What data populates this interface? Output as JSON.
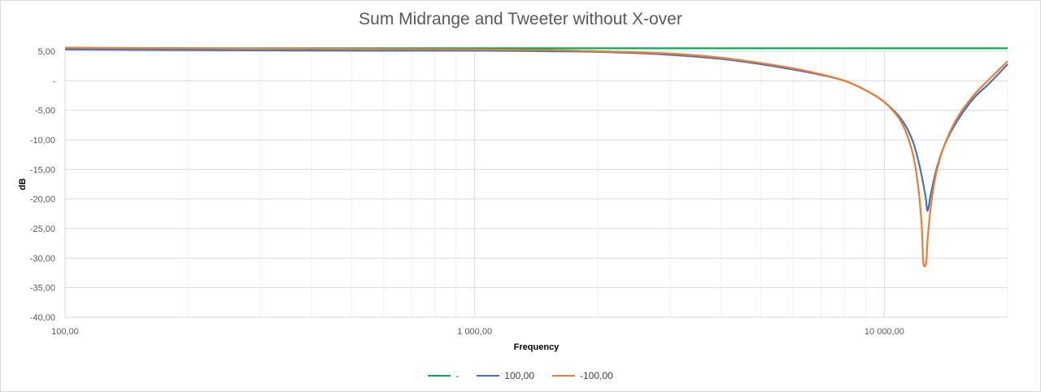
{
  "chart_data": {
    "type": "line",
    "title": "Sum Midrange and Tweeter without X-over",
    "xlabel": "Frequency",
    "ylabel": "dB",
    "x_scale": "log",
    "xlim": [
      100,
      20000
    ],
    "ylim": [
      -40,
      5
    ],
    "x_tick_labels": [
      "100,00",
      "1 000,00",
      "10 000,00"
    ],
    "x_ticks": [
      100,
      1000,
      10000
    ],
    "y_ticks": [
      5,
      0,
      -5,
      -10,
      -15,
      -20,
      -25,
      -30,
      -35,
      -40
    ],
    "y_tick_labels": [
      "5,00",
      "-",
      "-5,00",
      "-10,00",
      "-15,00",
      "-20,00",
      "-25,00",
      "-30,00",
      "-35,00",
      "-40,00"
    ],
    "grid": true,
    "legend_position": "bottom",
    "series": [
      {
        "name": "-",
        "color": "#00b050",
        "points": [
          [
            100,
            5.5
          ],
          [
            1000,
            5.5
          ],
          [
            10000,
            5.5
          ],
          [
            20000,
            5.5
          ]
        ]
      },
      {
        "name": "100,00",
        "color": "#4472c4",
        "points": [
          [
            100,
            5.3
          ],
          [
            200,
            5.2
          ],
          [
            500,
            5.1
          ],
          [
            1000,
            5.1
          ],
          [
            1500,
            5.0
          ],
          [
            2000,
            4.9
          ],
          [
            3000,
            4.4
          ],
          [
            4000,
            3.7
          ],
          [
            5000,
            2.8
          ],
          [
            6000,
            1.9
          ],
          [
            7000,
            1.0
          ],
          [
            8000,
            0.0
          ],
          [
            9000,
            -1.6
          ],
          [
            10000,
            -3.6
          ],
          [
            11000,
            -6.5
          ],
          [
            11700,
            -10.0
          ],
          [
            12200,
            -14.5
          ],
          [
            12600,
            -19.5
          ],
          [
            12750,
            -22.0
          ],
          [
            13000,
            -19.0
          ],
          [
            13400,
            -15.0
          ],
          [
            14000,
            -11.0
          ],
          [
            15000,
            -7.0
          ],
          [
            16500,
            -3.0
          ],
          [
            18000,
            -0.5
          ],
          [
            20000,
            2.8
          ]
        ]
      },
      {
        "name": "-100,00",
        "color": "#ed7d31",
        "points": [
          [
            100,
            5.6
          ],
          [
            200,
            5.5
          ],
          [
            500,
            5.4
          ],
          [
            1000,
            5.3
          ],
          [
            1500,
            5.2
          ],
          [
            2000,
            5.0
          ],
          [
            3000,
            4.6
          ],
          [
            4000,
            3.9
          ],
          [
            5000,
            3.0
          ],
          [
            6000,
            2.1
          ],
          [
            7000,
            1.1
          ],
          [
            8000,
            0.0
          ],
          [
            9000,
            -1.6
          ],
          [
            10000,
            -3.6
          ],
          [
            11000,
            -7.0
          ],
          [
            11700,
            -12.0
          ],
          [
            12100,
            -18.0
          ],
          [
            12350,
            -25.0
          ],
          [
            12450,
            -30.8
          ],
          [
            12650,
            -30.8
          ],
          [
            12750,
            -27.0
          ],
          [
            13000,
            -21.0
          ],
          [
            13400,
            -15.5
          ],
          [
            14000,
            -11.0
          ],
          [
            15000,
            -6.5
          ],
          [
            16500,
            -2.5
          ],
          [
            18000,
            0.2
          ],
          [
            20000,
            3.3
          ]
        ]
      }
    ]
  }
}
